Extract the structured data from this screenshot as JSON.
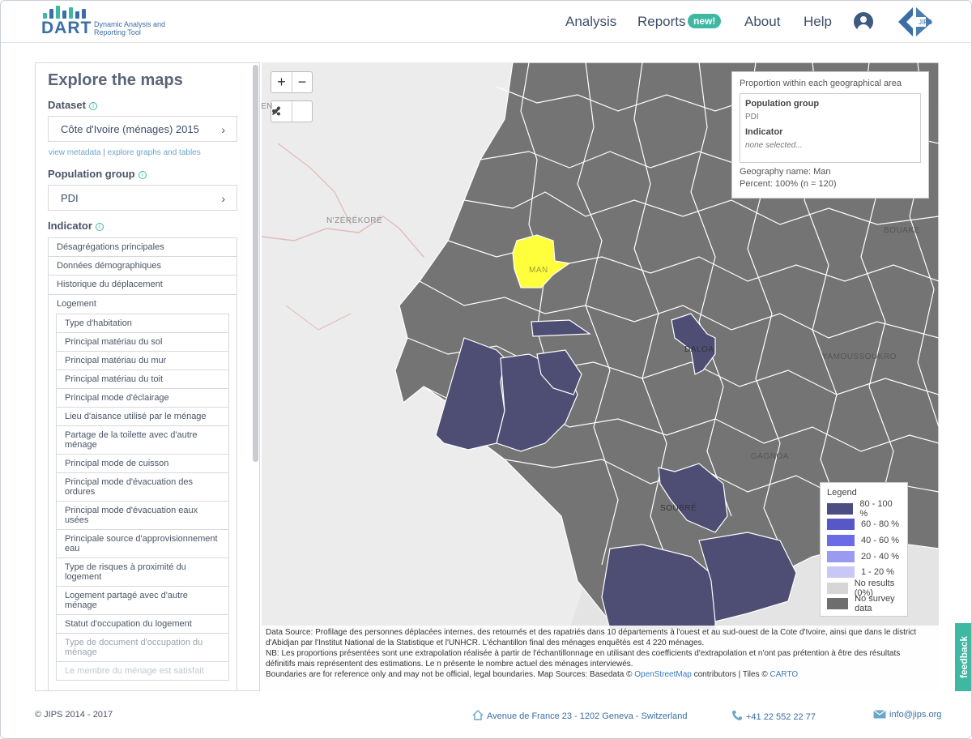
{
  "header": {
    "logo_word": "DART",
    "logo_subtitle": "Dynamic Analysis and Reporting Tool",
    "nav": {
      "analysis": "Analysis",
      "reports": "Reports",
      "reports_badge": "new!",
      "about": "About",
      "help": "Help"
    },
    "partner_logo_text": "JIPS"
  },
  "sidebar": {
    "title": "Explore the maps",
    "dataset_label": "Dataset",
    "dataset_value": "Côte d'Ivoire (ménages) 2015",
    "link_metadata": "view metadata",
    "link_separator": "|",
    "link_graphs": "explore graphs and tables",
    "population_label": "Population group",
    "population_value": "PDI",
    "indicator_label": "Indicator",
    "indicator_categories": [
      "Désagrégations principales",
      "Données démographiques",
      "Historique du déplacement",
      "Logement"
    ],
    "logement_items": [
      "Type d'habitation",
      "Principal matériau du sol",
      "Principal matériau du mur",
      "Principal matériau du toit",
      "Principal mode d'éclairage",
      "Lieu d'aisance utilisé par le ménage",
      "Partage de la toilette avec d'autre ménage",
      "Principal mode de cuisson",
      "Principal mode d'évacuation des ordures",
      "Principal mode d'évacuation eaux usées",
      "Principale source d'approvisionnement eau",
      "Type de risques à proximité du logement",
      "Logement partagé avec d'autre ménage",
      "Statut d'occupation du logement",
      "Type de document d'occupation du ménage",
      "Le membre du ménage est satisfait"
    ]
  },
  "map": {
    "zoom_in": "+",
    "zoom_out": "−",
    "place_labels": {
      "nzerekore": "N'ZÉRÉKORÉ",
      "man": "MAN",
      "daloa": "DALOA",
      "yamoussoukro": "YAMOUSSOUKRO",
      "bouake": "BOUAKE",
      "gagnoa": "GAGNOA",
      "soubre": "SOUBRÉ",
      "edge_letters": "EN"
    },
    "info_panel": {
      "heading": "Proportion within each geographical area",
      "population_key": "Population group",
      "population_value": "PDI",
      "indicator_key": "Indicator",
      "indicator_value": "none selected...",
      "geography_line": "Geography name: Man",
      "percent_line": "Percent: 100% (n = 120)"
    },
    "legend": {
      "title": "Legend",
      "items": [
        {
          "label": "80 - 100 %",
          "color": "#4d4d86"
        },
        {
          "label": "60 - 80 %",
          "color": "#5757c8"
        },
        {
          "label": "40 - 60 %",
          "color": "#6b6be6"
        },
        {
          "label": "20 - 40 %",
          "color": "#9a9af0"
        },
        {
          "label": "1 - 20 %",
          "color": "#c8c8f7"
        },
        {
          "label": "No results (0%)",
          "color": "#d6d6d6"
        },
        {
          "label": "No survey data",
          "color": "#6e6e6e"
        }
      ]
    },
    "colors": {
      "no_data_region": "#747474",
      "border": "#ffffff",
      "selected": "#ffff3c",
      "high": "#4e4e75"
    },
    "source_lines": [
      "Data Source: Profilage des personnes déplacées internes, des retournés et des rapatriés dans 10 départements à l'ouest et au sud-ouest de la Cote d'Ivoire, ainsi que dans le district",
      "d'Abidjan par l'Institut National de la Statistique et l'UNHCR. L'échantillon final des ménages enquêtés est 4 220 ménages.",
      "NB: Les proportions présentées sont une extrapolation réalisée à partir de l'échantillonnage en utilisant des coefficients d'extrapolation et n'ont pas prétention à être des résultats",
      "définitifs mais représentent des estimations. Le n présente le nombre actuel des ménages interviewés."
    ],
    "boundaries_text": "Boundaries are for reference only and may not be official, legal boundaries. Map Sources: Basedata ©",
    "osm_link": "OpenStreetMap",
    "contributors_text": "contributors | Tiles ©",
    "carto_link": "CARTO"
  },
  "feedback_label": "feedback",
  "footer": {
    "copyright": "© JIPS 2014 - 2017",
    "address": "Avenue de France 23 - 1202 Geneva - Switzerland",
    "phone": "+41 22 552 22 77",
    "email": "info@jips.org"
  }
}
